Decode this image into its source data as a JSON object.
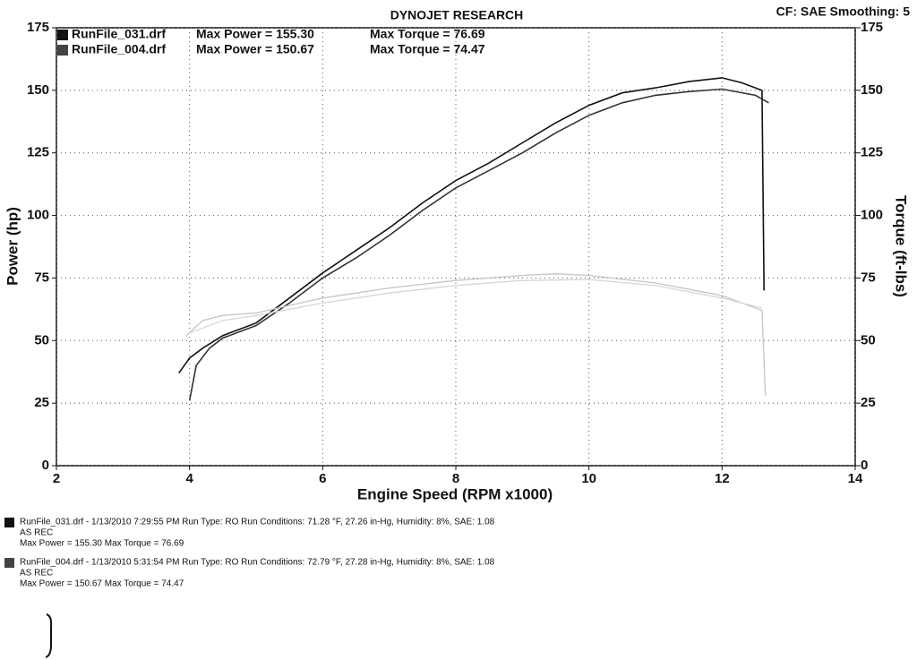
{
  "chart_data": {
    "type": "line",
    "title": "DYNOJET RESEARCH",
    "subtitle": "CF: SAE  Smoothing: 5",
    "x_label": "Engine Speed (RPM x1000)",
    "y_label": "Power (hp)",
    "y2_label": "Torque (ft-lbs)",
    "xlim": [
      2,
      14
    ],
    "xticks": [
      2,
      4,
      6,
      8,
      10,
      12,
      14
    ],
    "ylim": [
      0,
      175
    ],
    "yticks": [
      0,
      25,
      50,
      75,
      100,
      125,
      150,
      175
    ],
    "y2lim": [
      0,
      175
    ],
    "y2ticks": [
      0,
      25,
      50,
      75,
      100,
      125,
      150,
      175
    ],
    "grid": true,
    "legend": [
      {
        "file": "RunFile_031.drf",
        "max_power": "Max Power = 155.30",
        "max_torque": "Max Torque = 76.69"
      },
      {
        "file": "RunFile_004.drf",
        "max_power": "Max Power = 150.67",
        "max_torque": "Max Torque = 74.47"
      }
    ],
    "series": [
      {
        "name": "RunFile_031.drf",
        "color": "#111111",
        "x": [
          3.84,
          4.0,
          4.2,
          4.5,
          5.0,
          5.5,
          6.0,
          6.5,
          7.0,
          7.5,
          8.0,
          8.5,
          9.0,
          9.5,
          10.0,
          10.5,
          11.0,
          11.5,
          12.0,
          12.3,
          12.6,
          12.63
        ],
        "values": [
          37,
          43,
          47,
          52,
          57,
          67,
          77,
          86,
          95,
          105,
          114,
          121,
          129,
          137,
          144,
          149,
          151,
          153.5,
          155,
          153,
          150,
          70
        ]
      },
      {
        "name": "RunFile_004.drf",
        "color": "#333333",
        "x": [
          4.0,
          4.1,
          4.3,
          4.5,
          5.0,
          5.5,
          6.0,
          6.5,
          7.0,
          7.5,
          8.0,
          8.5,
          9.0,
          9.5,
          10.0,
          10.5,
          11.0,
          11.5,
          12.0,
          12.5,
          12.7
        ],
        "values": [
          26,
          40,
          47,
          51,
          56,
          65,
          75,
          83,
          92,
          102,
          111,
          118,
          125,
          133,
          140,
          145,
          148,
          149.5,
          150.5,
          148,
          145
        ]
      },
      {
        "axis": "y2",
        "color": "#c4c4c4",
        "x": [
          3.95,
          4.2,
          4.5,
          5.0,
          6.0,
          7.0,
          8.0,
          9.0,
          9.5,
          10.0,
          11.0,
          12.0,
          12.6,
          12.65
        ],
        "values": [
          52,
          58,
          60,
          61,
          67,
          71,
          74,
          76,
          76.7,
          76,
          73,
          68,
          62,
          28
        ]
      },
      {
        "axis": "y2",
        "color": "#d6d6d6",
        "x": [
          4.0,
          4.5,
          5.0,
          6.0,
          7.0,
          8.0,
          9.0,
          10.0,
          11.0,
          12.0,
          12.6
        ],
        "values": [
          53,
          58,
          60,
          65,
          69,
          72,
          74,
          74.4,
          72,
          67,
          63
        ]
      }
    ],
    "notes": [
      [
        "RunFile_031.drf - 1/13/2010 7:29:55 PM  Run Type: RO  Run Conditions: 71.28 °F, 27.26 in-Hg,  Humidity:  8%, SAE: 1.08",
        "AS REC",
        "Max Power = 155.30  Max Torque = 76.69"
      ],
      [
        "RunFile_004.drf - 1/13/2010 5:31:54 PM  Run Type: RO  Run Conditions: 72.79 °F, 27.28 in-Hg,  Humidity:  8%, SAE: 1.08",
        "AS REC",
        "Max Power = 150.67  Max Torque = 74.47"
      ]
    ]
  }
}
